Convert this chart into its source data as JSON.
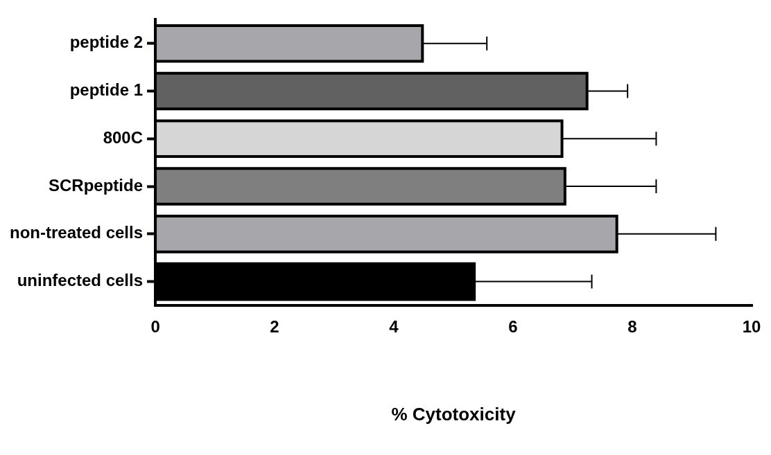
{
  "chart_data": {
    "type": "bar",
    "orientation": "horizontal",
    "xlabel": "% Cytotoxicity",
    "categories": [
      "peptide 2",
      "peptide 1",
      "800C",
      "SCRpeptide",
      "non-treated cells",
      "uninfected cells"
    ],
    "values": [
      4.48,
      7.24,
      6.82,
      6.87,
      7.74,
      5.35
    ],
    "colors": [
      "#a7a6ab",
      "#616161",
      "#d6d6d6",
      "#7f7f7f",
      "#a7a6ab",
      "#000000"
    ],
    "errors": [
      [
        4.48,
        5.56
      ],
      [
        7.24,
        7.92
      ],
      [
        6.82,
        8.4
      ],
      [
        6.87,
        8.4
      ],
      [
        7.74,
        9.4
      ],
      [
        5.35,
        7.32
      ]
    ],
    "xlim": [
      0,
      10
    ],
    "xticks": [
      0,
      2,
      4,
      6,
      8,
      10
    ],
    "grid": false,
    "legend": false
  }
}
